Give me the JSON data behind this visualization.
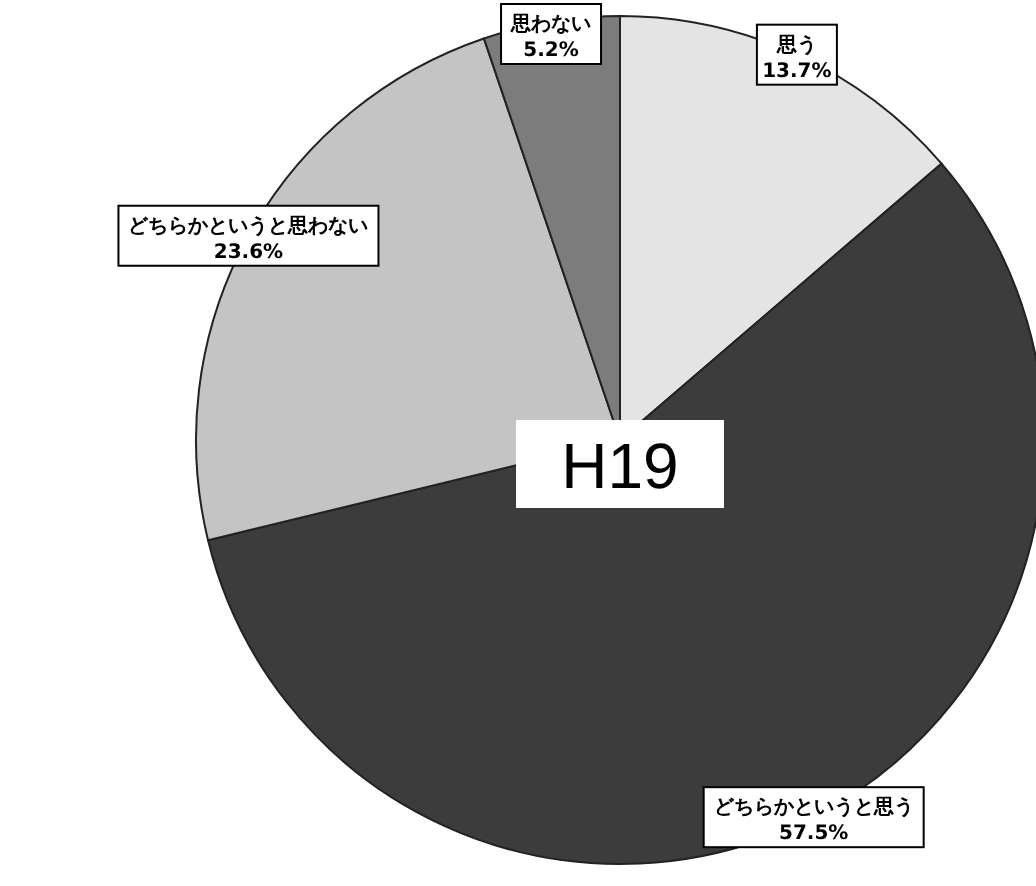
{
  "chart_data": {
    "type": "pie",
    "title": "H19",
    "categories": [
      "思う",
      "どちらかというと思う",
      "どちらかというと思わない",
      "思わない"
    ],
    "values": [
      13.7,
      57.5,
      23.6,
      5.2
    ],
    "colors": [
      "#e4e4e4",
      "#3c3c3c",
      "#c4c4c4",
      "#7c7c7c"
    ],
    "value_labels": [
      "13.7%",
      "57.5%",
      "23.6%",
      "5.2%"
    ]
  }
}
